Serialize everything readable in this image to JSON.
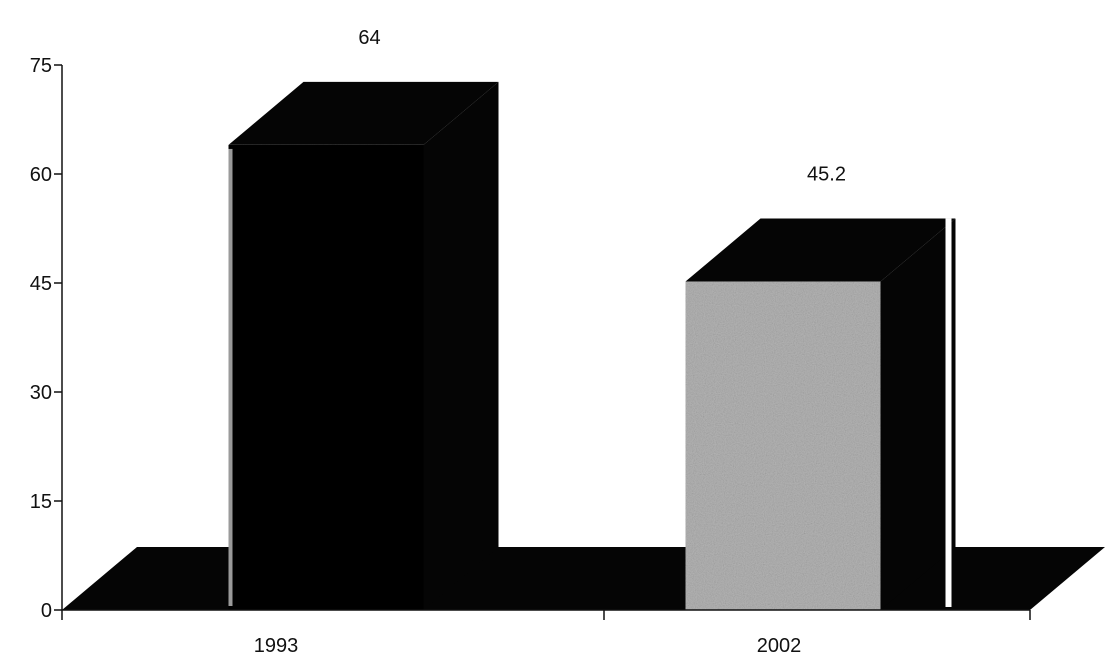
{
  "chart_data": {
    "type": "bar",
    "title": "",
    "xlabel": "",
    "ylabel": "",
    "categories": [
      "1993",
      "2002"
    ],
    "values": [
      64,
      45.2
    ],
    "value_labels": [
      "64",
      "45.2"
    ],
    "ylim": [
      0,
      75
    ],
    "yticks": [
      0,
      15,
      30,
      45,
      60,
      75
    ],
    "grid": false,
    "legend": "none",
    "style": "3d",
    "colors": {
      "bar_dark": "#050505",
      "bar_light": "#b5b5b5",
      "floor": "#050505"
    }
  }
}
